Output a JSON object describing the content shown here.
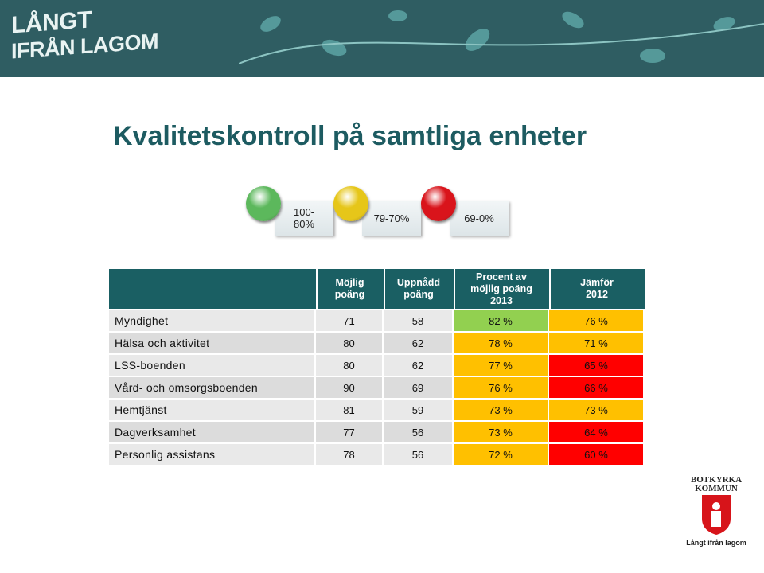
{
  "banner": {
    "logo_lines": [
      "LÅNGT",
      "IFRÅN LAGOM"
    ]
  },
  "title": "Kvalitetskontroll på samtliga enheter",
  "legend": [
    {
      "lines": [
        "100-",
        "80%"
      ],
      "color": "#5cb85c"
    },
    {
      "lines": [
        "79-70%"
      ],
      "color": "#e6c619"
    },
    {
      "lines": [
        "69-0%"
      ],
      "color": "#d9141b"
    }
  ],
  "table": {
    "header": [
      [
        "Möjlig",
        "poäng"
      ],
      [
        "Uppnådd",
        "poäng"
      ],
      [
        "Procent av",
        "möjlig poäng",
        "2013"
      ],
      [
        "Jämför",
        "2012"
      ]
    ],
    "rows": [
      [
        "Myndighet",
        "71",
        "58",
        "82 %",
        "76 %"
      ],
      [
        "Hälsa och aktivitet",
        "80",
        "62",
        "78 %",
        "71 %"
      ],
      [
        "LSS-boenden",
        "80",
        "62",
        "77 %",
        "65 %"
      ],
      [
        "Vård- och omsorgsboenden",
        "90",
        "69",
        "76 %",
        "66 %"
      ],
      [
        "Hemtjänst",
        "81",
        "59",
        "73 %",
        "73 %"
      ],
      [
        "Dagverksamhet",
        "77",
        "56",
        "73 %",
        "64 %"
      ],
      [
        "Personlig assistans",
        "78",
        "56",
        "72 %",
        "60 %"
      ]
    ],
    "cell_colors": [
      [
        "#92d050",
        "#ffc000"
      ],
      [
        "#ffc000",
        "#ffc000"
      ],
      [
        "#ffc000",
        "#ff0000"
      ],
      [
        "#ffc000",
        "#ff0000"
      ],
      [
        "#ffc000",
        "#ffc000"
      ],
      [
        "#ffc000",
        "#ff0000"
      ],
      [
        "#ffc000",
        "#ff0000"
      ]
    ]
  },
  "footer_logo": {
    "name_lines": [
      "BOTKYRKA",
      "KOMMUN"
    ],
    "slogan": "Långt ifrån lagom"
  }
}
